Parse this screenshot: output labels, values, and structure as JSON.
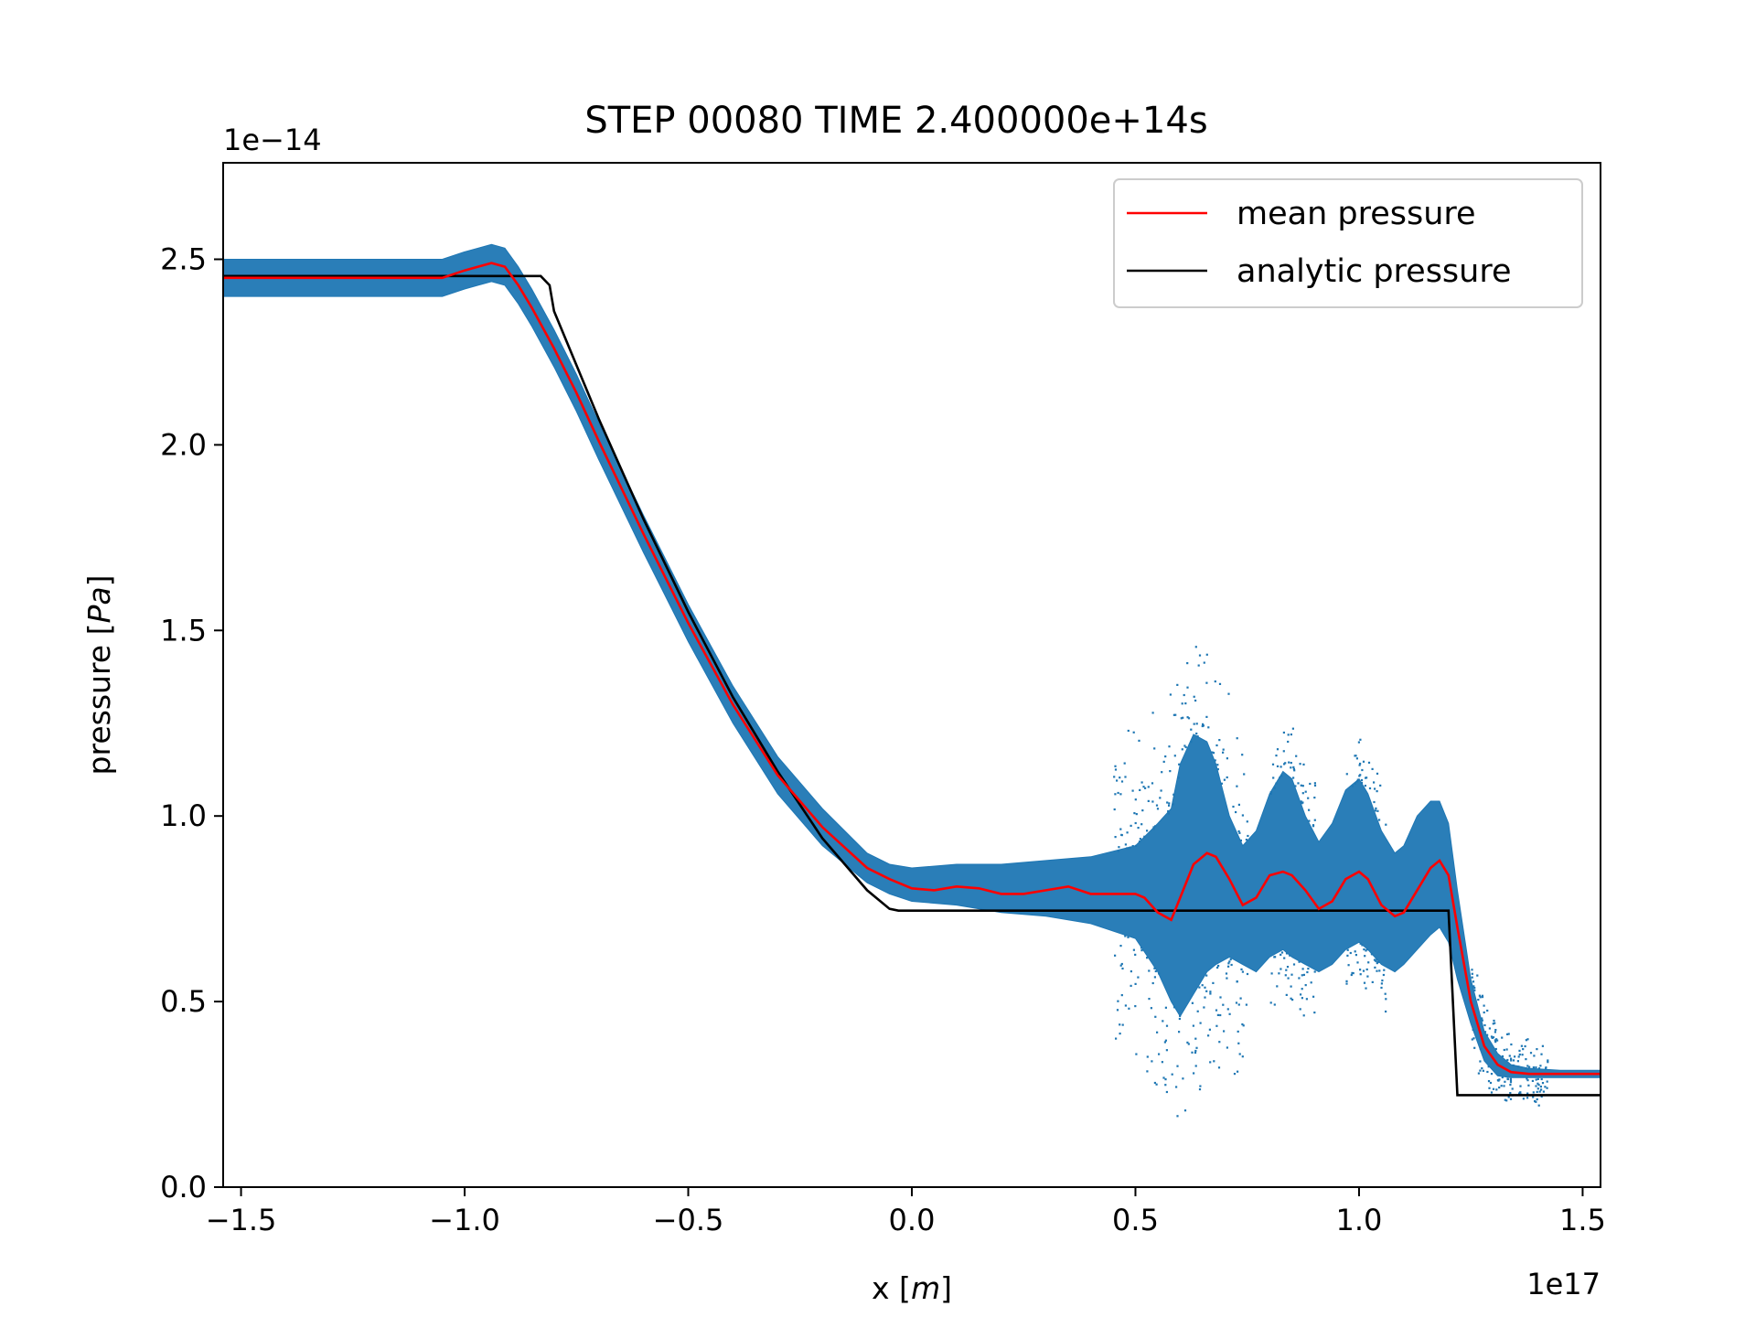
{
  "chart_data": {
    "type": "scatter",
    "title": "STEP 00080 TIME 2.400000e+14s",
    "xlabel_main": "x [",
    "xlabel_var": "m",
    "xlabel_end": "]",
    "ylabel_main": "pressure [",
    "ylabel_var": "Pa",
    "ylabel_end": "]",
    "x_offset_label": "1e17",
    "y_offset_label": "1e−14",
    "xlim": [
      -1.54,
      1.54
    ],
    "ylim": [
      0.0,
      2.76
    ],
    "x_ticks": [
      -1.5,
      -1.0,
      -0.5,
      0.0,
      0.5,
      1.0,
      1.5
    ],
    "x_tick_labels": [
      "−1.5",
      "−1.0",
      "−0.5",
      "0.0",
      "0.5",
      "1.0",
      "1.5"
    ],
    "y_ticks": [
      0.0,
      0.5,
      1.0,
      1.5,
      2.0,
      2.5
    ],
    "y_tick_labels": [
      "0.0",
      "0.5",
      "1.0",
      "1.5",
      "2.0",
      "2.5"
    ],
    "grid": false,
    "legend_position": "top-right",
    "series": [
      {
        "name": "mean pressure",
        "kind": "line",
        "color": "#ff0000",
        "x": [
          -1.54,
          -1.2,
          -1.05,
          -1.0,
          -0.97,
          -0.94,
          -0.91,
          -0.88,
          -0.85,
          -0.8,
          -0.75,
          -0.7,
          -0.6,
          -0.5,
          -0.4,
          -0.3,
          -0.2,
          -0.1,
          -0.05,
          0.0,
          0.05,
          0.1,
          0.15,
          0.2,
          0.25,
          0.3,
          0.35,
          0.4,
          0.45,
          0.5,
          0.52,
          0.55,
          0.58,
          0.6,
          0.63,
          0.66,
          0.68,
          0.71,
          0.74,
          0.77,
          0.8,
          0.83,
          0.85,
          0.88,
          0.91,
          0.94,
          0.97,
          1.0,
          1.02,
          1.05,
          1.08,
          1.1,
          1.13,
          1.16,
          1.18,
          1.2,
          1.22,
          1.25,
          1.28,
          1.31,
          1.34,
          1.38,
          1.45,
          1.54
        ],
        "y": [
          2.45,
          2.45,
          2.45,
          2.47,
          2.48,
          2.49,
          2.48,
          2.43,
          2.37,
          2.26,
          2.14,
          2.01,
          1.76,
          1.52,
          1.3,
          1.11,
          0.97,
          0.86,
          0.83,
          0.805,
          0.8,
          0.81,
          0.805,
          0.79,
          0.79,
          0.8,
          0.81,
          0.79,
          0.79,
          0.79,
          0.78,
          0.74,
          0.72,
          0.78,
          0.87,
          0.9,
          0.89,
          0.83,
          0.76,
          0.78,
          0.84,
          0.85,
          0.84,
          0.8,
          0.75,
          0.77,
          0.83,
          0.85,
          0.83,
          0.76,
          0.73,
          0.74,
          0.8,
          0.86,
          0.88,
          0.84,
          0.7,
          0.5,
          0.38,
          0.33,
          0.31,
          0.305,
          0.305,
          0.305
        ]
      },
      {
        "name": "analytic pressure",
        "kind": "line",
        "color": "#000000",
        "x": [
          -1.54,
          -0.83,
          -0.81,
          -0.8,
          -0.7,
          -0.6,
          -0.5,
          -0.4,
          -0.3,
          -0.2,
          -0.1,
          -0.05,
          -0.03,
          1.2,
          1.22,
          1.54
        ],
        "y": [
          2.455,
          2.455,
          2.43,
          2.36,
          2.07,
          1.8,
          1.55,
          1.32,
          1.12,
          0.94,
          0.8,
          0.75,
          0.745,
          0.745,
          0.248,
          0.248
        ]
      },
      {
        "name": "",
        "kind": "scatter",
        "color": "#1f77b4",
        "envelope_x": [
          -1.54,
          -1.2,
          -1.05,
          -1.0,
          -0.97,
          -0.94,
          -0.91,
          -0.88,
          -0.85,
          -0.8,
          -0.75,
          -0.7,
          -0.6,
          -0.5,
          -0.4,
          -0.3,
          -0.2,
          -0.1,
          -0.05,
          0.0,
          0.1,
          0.2,
          0.3,
          0.4,
          0.5,
          0.55,
          0.58,
          0.6,
          0.63,
          0.66,
          0.68,
          0.71,
          0.74,
          0.77,
          0.8,
          0.83,
          0.85,
          0.88,
          0.91,
          0.94,
          0.97,
          1.0,
          1.02,
          1.05,
          1.08,
          1.1,
          1.13,
          1.16,
          1.18,
          1.2,
          1.22,
          1.25,
          1.28,
          1.31,
          1.34,
          1.38,
          1.45,
          1.54
        ],
        "envelope_upper": [
          2.5,
          2.5,
          2.5,
          2.52,
          2.53,
          2.54,
          2.53,
          2.48,
          2.42,
          2.31,
          2.19,
          2.06,
          1.81,
          1.57,
          1.35,
          1.16,
          1.02,
          0.9,
          0.87,
          0.86,
          0.87,
          0.87,
          0.88,
          0.89,
          0.92,
          0.98,
          1.02,
          1.14,
          1.22,
          1.2,
          1.14,
          1.0,
          0.92,
          0.96,
          1.06,
          1.12,
          1.1,
          1.0,
          0.93,
          0.98,
          1.07,
          1.1,
          1.06,
          0.96,
          0.9,
          0.92,
          1.0,
          1.04,
          1.04,
          0.98,
          0.8,
          0.56,
          0.42,
          0.36,
          0.33,
          0.32,
          0.315,
          0.315
        ],
        "envelope_lower": [
          2.4,
          2.4,
          2.4,
          2.42,
          2.43,
          2.44,
          2.43,
          2.38,
          2.32,
          2.21,
          2.09,
          1.96,
          1.71,
          1.47,
          1.25,
          1.06,
          0.92,
          0.82,
          0.79,
          0.77,
          0.76,
          0.74,
          0.73,
          0.71,
          0.67,
          0.58,
          0.5,
          0.46,
          0.52,
          0.58,
          0.6,
          0.62,
          0.6,
          0.58,
          0.62,
          0.64,
          0.62,
          0.6,
          0.58,
          0.6,
          0.64,
          0.66,
          0.64,
          0.6,
          0.58,
          0.6,
          0.64,
          0.68,
          0.7,
          0.66,
          0.56,
          0.44,
          0.34,
          0.3,
          0.295,
          0.295,
          0.295,
          0.295
        ],
        "outlier_ranges": [
          {
            "x0": 0.45,
            "x1": 0.75,
            "spread": 0.32
          },
          {
            "x0": 0.8,
            "x1": 0.9,
            "spread": 0.14
          },
          {
            "x0": 0.97,
            "x1": 1.06,
            "spread": 0.12
          },
          {
            "x0": 1.25,
            "x1": 1.42,
            "spread": 0.08
          }
        ]
      }
    ]
  }
}
